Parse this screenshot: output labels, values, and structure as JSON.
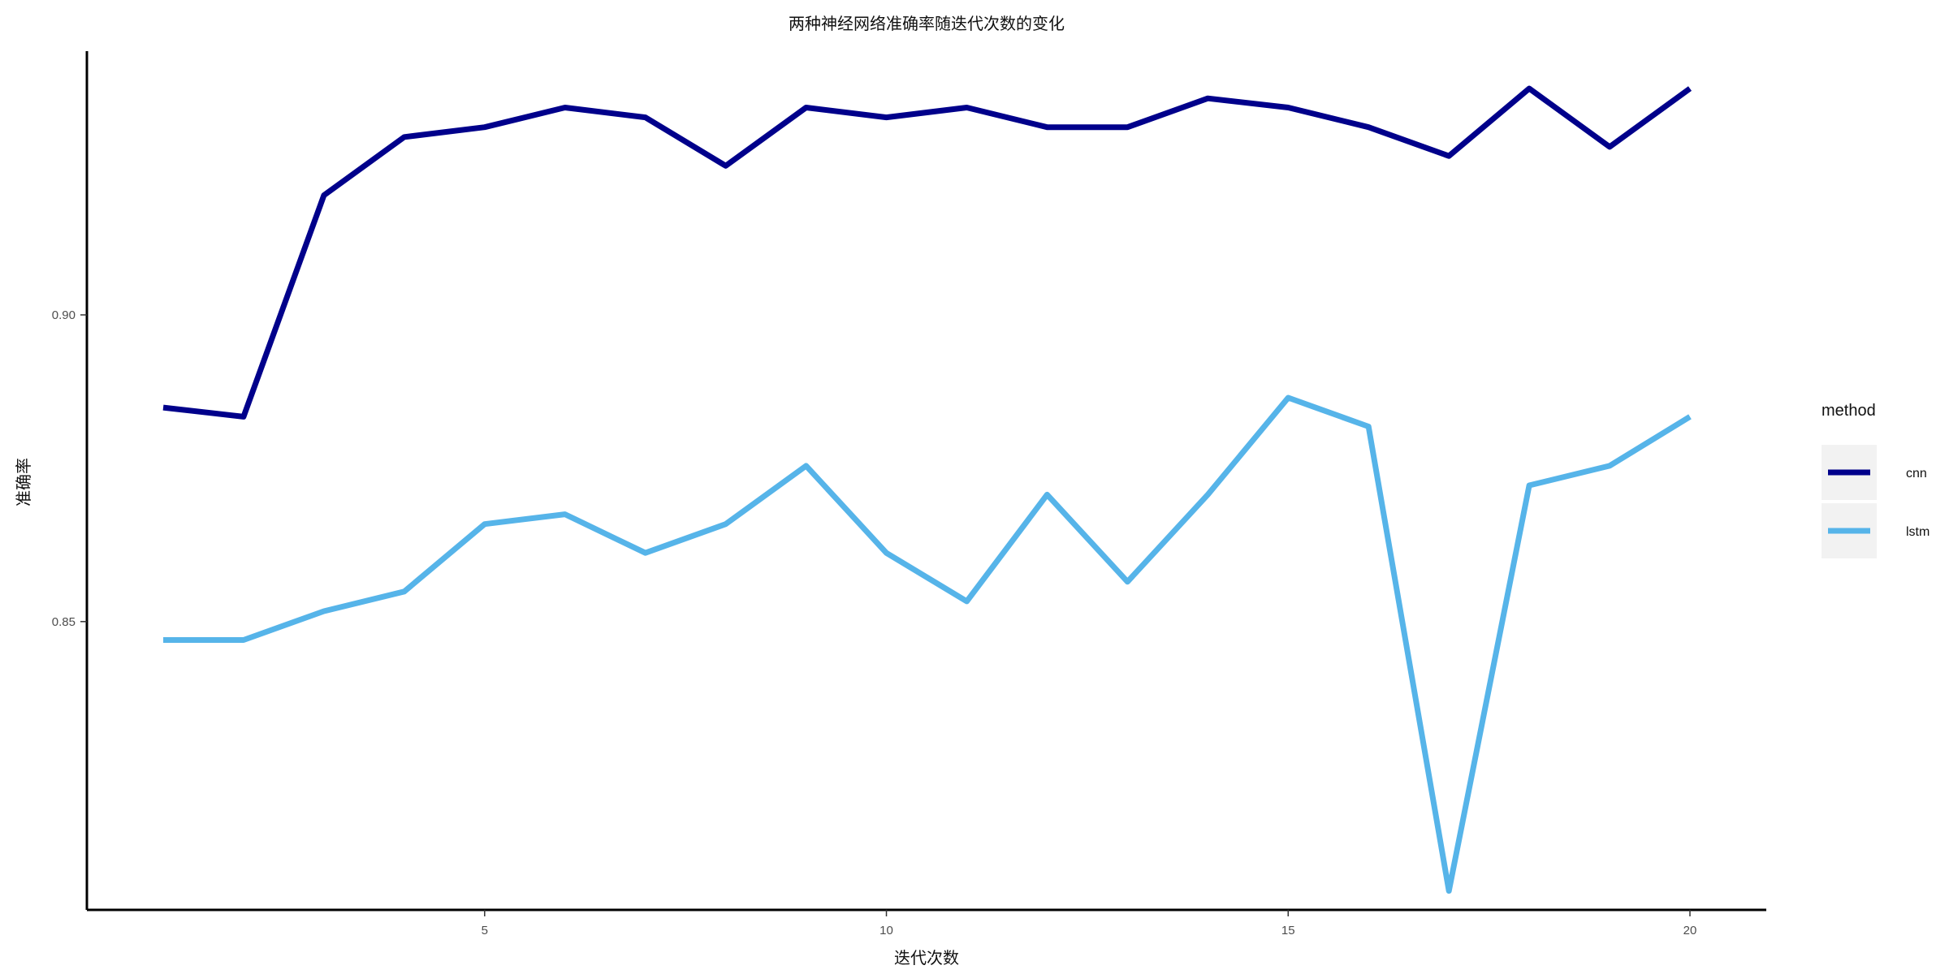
{
  "chart_data": {
    "type": "line",
    "title": "两种神经网络准确率随迭代次数的变化",
    "xlabel": "迭代次数",
    "ylabel": "准确率",
    "x": [
      1,
      2,
      3,
      4,
      5,
      6,
      7,
      8,
      9,
      10,
      11,
      12,
      13,
      14,
      15,
      16,
      17,
      18,
      19,
      20
    ],
    "xticks": [
      5,
      10,
      15,
      20
    ],
    "yticks": [
      0.85,
      0.9
    ],
    "xlim": [
      0.05,
      20.95
    ],
    "ylim": [
      0.803,
      0.943
    ],
    "grid": false,
    "legend": {
      "title": "method",
      "placement": "right"
    },
    "series": [
      {
        "name": "cnn",
        "color": "#00008B",
        "values": [
          0.8849,
          0.8834,
          0.9195,
          0.929,
          0.9306,
          0.9338,
          0.9322,
          0.9243,
          0.9338,
          0.9322,
          0.9338,
          0.9306,
          0.9306,
          0.9353,
          0.9338,
          0.9306,
          0.9259,
          0.9369,
          0.9274,
          0.9369
        ]
      },
      {
        "name": "lstm",
        "color": "#56B4E9",
        "values": [
          0.847,
          0.847,
          0.8517,
          0.8549,
          0.8659,
          0.8675,
          0.8612,
          0.8659,
          0.8754,
          0.8612,
          0.8533,
          0.8707,
          0.8565,
          0.8707,
          0.8865,
          0.8818,
          0.8061,
          0.8722,
          0.8754,
          0.8834
        ]
      }
    ]
  }
}
